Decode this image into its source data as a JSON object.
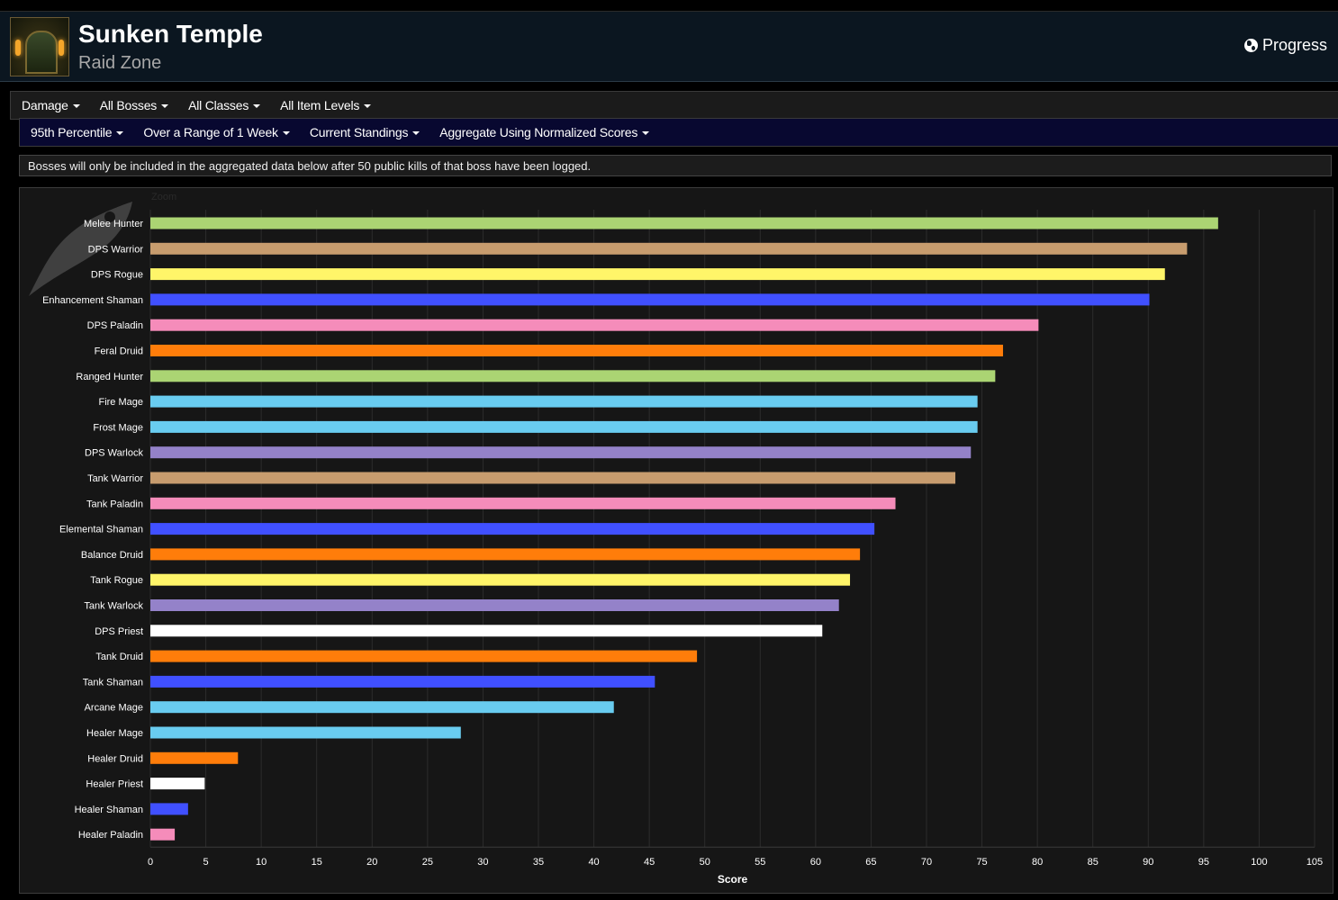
{
  "header": {
    "title": "Sunken Temple",
    "subtitle": "Raid Zone",
    "progress_label": "Progress"
  },
  "filters_row1": [
    "Damage",
    "All Bosses",
    "All Classes",
    "All Item Levels"
  ],
  "filters_row2": [
    "95th Percentile",
    "Over a Range of 1 Week",
    "Current Standings",
    "Aggregate Using Normalized Scores"
  ],
  "notice": "Bosses will only be included in the aggregated data below after 50 public kills of that boss have been logged.",
  "chart_data": {
    "type": "bar",
    "orientation": "horizontal",
    "zoom_label": "Zoom",
    "xlabel": "Score",
    "xlim": [
      0,
      105
    ],
    "xticks": [
      0,
      5,
      10,
      15,
      20,
      25,
      30,
      35,
      40,
      45,
      50,
      55,
      60,
      65,
      70,
      75,
      80,
      85,
      90,
      95,
      100,
      105
    ],
    "categories": [
      "Melee Hunter",
      "DPS Warrior",
      "DPS Rogue",
      "Enhancement Shaman",
      "DPS Paladin",
      "Feral Druid",
      "Ranged Hunter",
      "Fire Mage",
      "Frost Mage",
      "DPS Warlock",
      "Tank Warrior",
      "Tank Paladin",
      "Elemental Shaman",
      "Balance Druid",
      "Tank Rogue",
      "Tank Warlock",
      "DPS Priest",
      "Tank Druid",
      "Tank Shaman",
      "Arcane Mage",
      "Healer Mage",
      "Healer Druid",
      "Healer Priest",
      "Healer Shaman",
      "Healer Paladin"
    ],
    "values": [
      96.3,
      93.5,
      91.5,
      90.1,
      80.1,
      76.9,
      76.2,
      74.6,
      74.6,
      74.0,
      72.6,
      67.2,
      65.3,
      64.0,
      63.1,
      62.1,
      60.6,
      49.3,
      45.5,
      41.8,
      28.0,
      7.9,
      4.9,
      3.4,
      2.2
    ],
    "colors": [
      "#abd473",
      "#c79c6e",
      "#fff569",
      "#4050ff",
      "#f58cba",
      "#ff7d0a",
      "#abd473",
      "#69ccf0",
      "#69ccf0",
      "#9482c9",
      "#c79c6e",
      "#f58cba",
      "#4050ff",
      "#ff7d0a",
      "#fff569",
      "#9482c9",
      "#ffffff",
      "#ff7d0a",
      "#4050ff",
      "#69ccf0",
      "#69ccf0",
      "#ff7d0a",
      "#ffffff",
      "#4050ff",
      "#f58cba"
    ]
  }
}
